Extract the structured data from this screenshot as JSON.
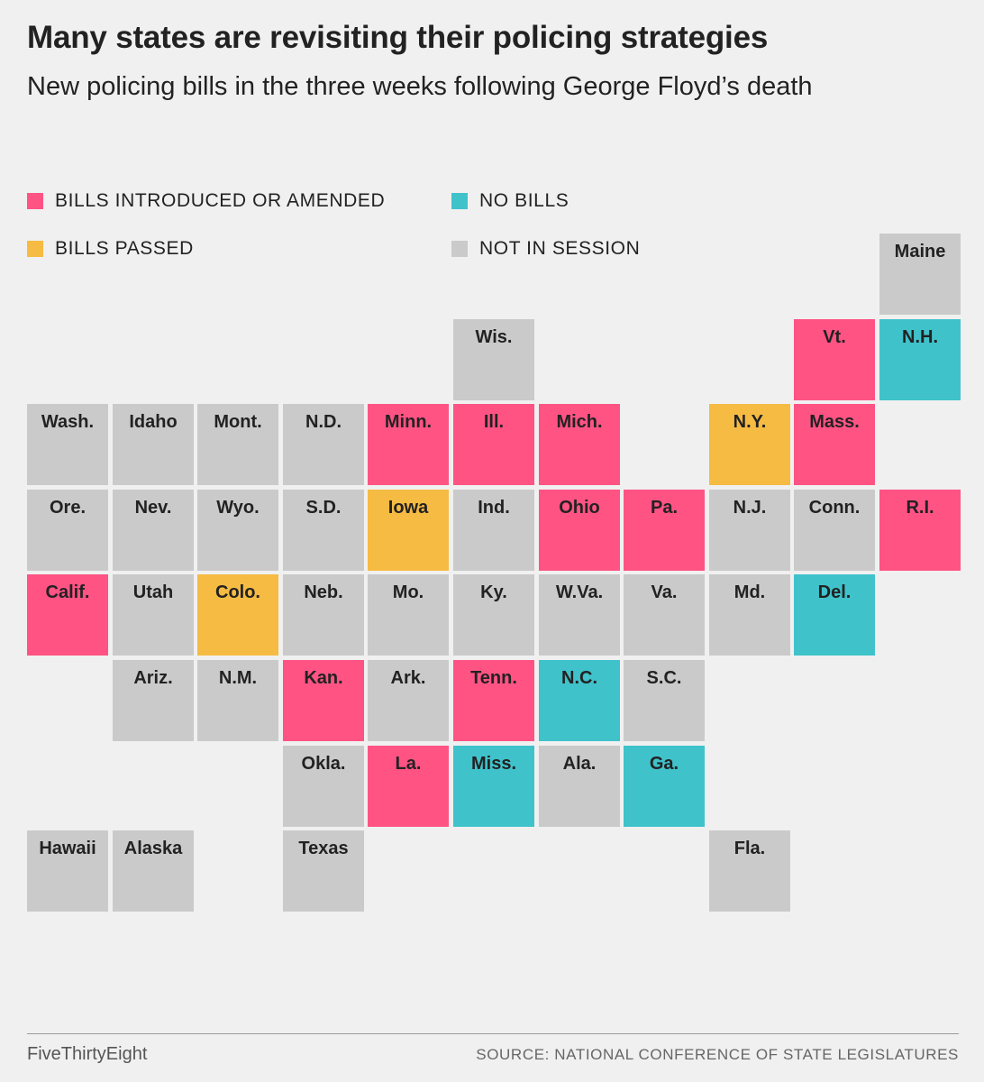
{
  "title": "Many states are revisiting their policing strategies",
  "subtitle": "New policing bills in the three weeks following George Floyd’s death",
  "colors": {
    "introduced": "#ff5384",
    "passed": "#f6bb43",
    "no_bills": "#40c2cb",
    "not_in_session": "#cacaca"
  },
  "legend": [
    {
      "status": "introduced",
      "label": "BILLS INTRODUCED OR AMENDED"
    },
    {
      "status": "no_bills",
      "label": "NO BILLS"
    },
    {
      "status": "passed",
      "label": "BILLS PASSED"
    },
    {
      "status": "not_in_session",
      "label": "NOT IN SESSION"
    }
  ],
  "states": [
    {
      "abbr": "Maine",
      "status": "not_in_session",
      "col": 10,
      "row": 0
    },
    {
      "abbr": "Wis.",
      "status": "not_in_session",
      "col": 5,
      "row": 1
    },
    {
      "abbr": "Vt.",
      "status": "introduced",
      "col": 9,
      "row": 1
    },
    {
      "abbr": "N.H.",
      "status": "no_bills",
      "col": 10,
      "row": 1
    },
    {
      "abbr": "Wash.",
      "status": "not_in_session",
      "col": 0,
      "row": 2
    },
    {
      "abbr": "Idaho",
      "status": "not_in_session",
      "col": 1,
      "row": 2
    },
    {
      "abbr": "Mont.",
      "status": "not_in_session",
      "col": 2,
      "row": 2
    },
    {
      "abbr": "N.D.",
      "status": "not_in_session",
      "col": 3,
      "row": 2
    },
    {
      "abbr": "Minn.",
      "status": "introduced",
      "col": 4,
      "row": 2
    },
    {
      "abbr": "Ill.",
      "status": "introduced",
      "col": 5,
      "row": 2
    },
    {
      "abbr": "Mich.",
      "status": "introduced",
      "col": 6,
      "row": 2
    },
    {
      "abbr": "N.Y.",
      "status": "passed",
      "col": 8,
      "row": 2
    },
    {
      "abbr": "Mass.",
      "status": "introduced",
      "col": 9,
      "row": 2
    },
    {
      "abbr": "Ore.",
      "status": "not_in_session",
      "col": 0,
      "row": 3
    },
    {
      "abbr": "Nev.",
      "status": "not_in_session",
      "col": 1,
      "row": 3
    },
    {
      "abbr": "Wyo.",
      "status": "not_in_session",
      "col": 2,
      "row": 3
    },
    {
      "abbr": "S.D.",
      "status": "not_in_session",
      "col": 3,
      "row": 3
    },
    {
      "abbr": "Iowa",
      "status": "passed",
      "col": 4,
      "row": 3
    },
    {
      "abbr": "Ind.",
      "status": "not_in_session",
      "col": 5,
      "row": 3
    },
    {
      "abbr": "Ohio",
      "status": "introduced",
      "col": 6,
      "row": 3
    },
    {
      "abbr": "Pa.",
      "status": "introduced",
      "col": 7,
      "row": 3
    },
    {
      "abbr": "N.J.",
      "status": "not_in_session",
      "col": 8,
      "row": 3
    },
    {
      "abbr": "Conn.",
      "status": "not_in_session",
      "col": 9,
      "row": 3
    },
    {
      "abbr": "R.I.",
      "status": "introduced",
      "col": 10,
      "row": 3
    },
    {
      "abbr": "Calif.",
      "status": "introduced",
      "col": 0,
      "row": 4
    },
    {
      "abbr": "Utah",
      "status": "not_in_session",
      "col": 1,
      "row": 4
    },
    {
      "abbr": "Colo.",
      "status": "passed",
      "col": 2,
      "row": 4
    },
    {
      "abbr": "Neb.",
      "status": "not_in_session",
      "col": 3,
      "row": 4
    },
    {
      "abbr": "Mo.",
      "status": "not_in_session",
      "col": 4,
      "row": 4
    },
    {
      "abbr": "Ky.",
      "status": "not_in_session",
      "col": 5,
      "row": 4
    },
    {
      "abbr": "W.Va.",
      "status": "not_in_session",
      "col": 6,
      "row": 4
    },
    {
      "abbr": "Va.",
      "status": "not_in_session",
      "col": 7,
      "row": 4
    },
    {
      "abbr": "Md.",
      "status": "not_in_session",
      "col": 8,
      "row": 4
    },
    {
      "abbr": "Del.",
      "status": "no_bills",
      "col": 9,
      "row": 4
    },
    {
      "abbr": "Ariz.",
      "status": "not_in_session",
      "col": 1,
      "row": 5
    },
    {
      "abbr": "N.M.",
      "status": "not_in_session",
      "col": 2,
      "row": 5
    },
    {
      "abbr": "Kan.",
      "status": "introduced",
      "col": 3,
      "row": 5
    },
    {
      "abbr": "Ark.",
      "status": "not_in_session",
      "col": 4,
      "row": 5
    },
    {
      "abbr": "Tenn.",
      "status": "introduced",
      "col": 5,
      "row": 5
    },
    {
      "abbr": "N.C.",
      "status": "no_bills",
      "col": 6,
      "row": 5
    },
    {
      "abbr": "S.C.",
      "status": "not_in_session",
      "col": 7,
      "row": 5
    },
    {
      "abbr": "Okla.",
      "status": "not_in_session",
      "col": 3,
      "row": 6
    },
    {
      "abbr": "La.",
      "status": "introduced",
      "col": 4,
      "row": 6
    },
    {
      "abbr": "Miss.",
      "status": "no_bills",
      "col": 5,
      "row": 6
    },
    {
      "abbr": "Ala.",
      "status": "not_in_session",
      "col": 6,
      "row": 6
    },
    {
      "abbr": "Ga.",
      "status": "no_bills",
      "col": 7,
      "row": 6
    },
    {
      "abbr": "Hawaii",
      "status": "not_in_session",
      "col": 0,
      "row": 7
    },
    {
      "abbr": "Alaska",
      "status": "not_in_session",
      "col": 1,
      "row": 7
    },
    {
      "abbr": "Texas",
      "status": "not_in_session",
      "col": 3,
      "row": 7
    },
    {
      "abbr": "Fla.",
      "status": "not_in_session",
      "col": 8,
      "row": 7
    }
  ],
  "footer": {
    "brand": "FiveThirtyEight",
    "source": "SOURCE: NATIONAL CONFERENCE OF STATE LEGISLATURES"
  }
}
